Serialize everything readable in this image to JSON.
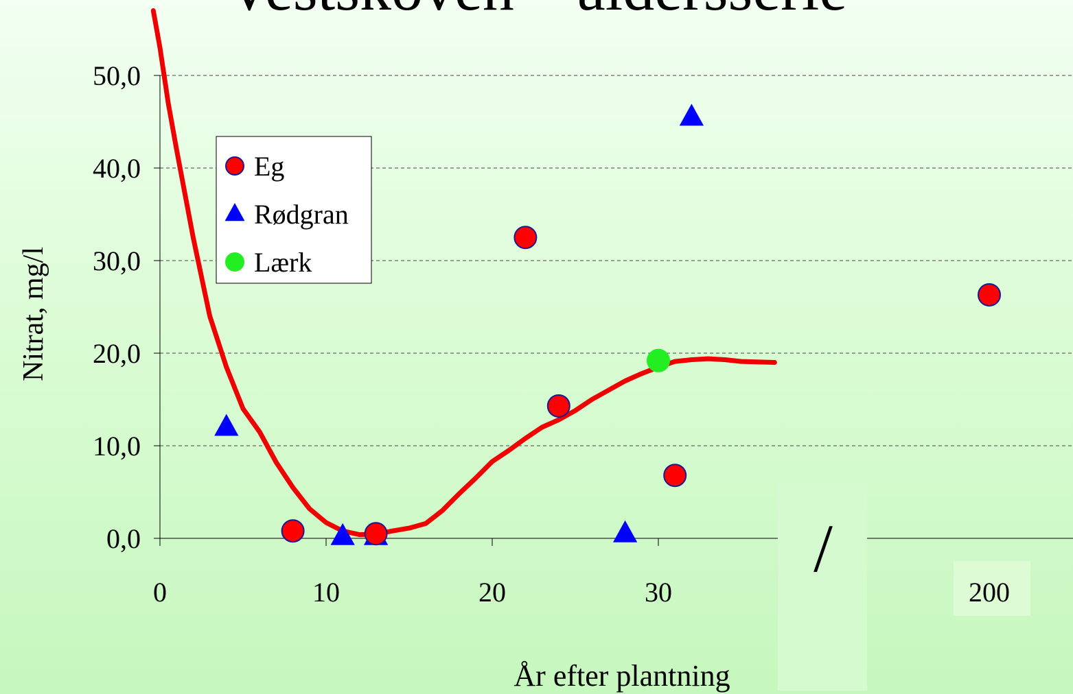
{
  "chart_data": {
    "type": "scatter",
    "title": "Vestskoven – aldersserie",
    "xlabel": "År efter plantning",
    "ylabel": "Nitrat, mg/l",
    "xlim": [
      0,
      38
    ],
    "ylim": [
      0,
      50
    ],
    "x_ticks": [
      "0",
      "10",
      "20",
      "30",
      "200"
    ],
    "y_ticks": [
      "0,0",
      "10,0",
      "20,0",
      "30,0",
      "40,0",
      "50,0"
    ],
    "axis_break": "/",
    "grid": true,
    "legend_position": "upper-left",
    "series": [
      {
        "name": "Eg",
        "marker": "circle",
        "color": "#ff0000",
        "edge_color": "#1a1a8c",
        "points": [
          {
            "x": 8,
            "y": 0.8
          },
          {
            "x": 13,
            "y": 0.5
          },
          {
            "x": 22,
            "y": 32.5
          },
          {
            "x": 24,
            "y": 14.3
          },
          {
            "x": 31,
            "y": 6.8
          },
          {
            "x": "200",
            "y": 26.3
          }
        ]
      },
      {
        "name": "Rødgran",
        "marker": "triangle",
        "color": "#0000ff",
        "points": [
          {
            "x": 4,
            "y": 12
          },
          {
            "x": 11,
            "y": 0.2
          },
          {
            "x": 13,
            "y": 0.2
          },
          {
            "x": 28,
            "y": 0.5
          },
          {
            "x": 32,
            "y": 45.5
          }
        ]
      },
      {
        "name": "Lærk",
        "marker": "circle",
        "color": "#22ee22",
        "points": [
          {
            "x": 30,
            "y": 19.2
          }
        ]
      }
    ],
    "trend_line": {
      "color": "#ee0000",
      "points": [
        {
          "x": -0.4,
          "y": 57
        },
        {
          "x": 0,
          "y": 53
        },
        {
          "x": 0.5,
          "y": 47
        },
        {
          "x": 1,
          "y": 42
        },
        {
          "x": 2,
          "y": 32.5
        },
        {
          "x": 3,
          "y": 24
        },
        {
          "x": 4,
          "y": 18.5
        },
        {
          "x": 5,
          "y": 14
        },
        {
          "x": 6,
          "y": 11.5
        },
        {
          "x": 7,
          "y": 8.2
        },
        {
          "x": 8,
          "y": 5.5
        },
        {
          "x": 9,
          "y": 3.2
        },
        {
          "x": 10,
          "y": 1.7
        },
        {
          "x": 11,
          "y": 0.8
        },
        {
          "x": 12,
          "y": 0.4
        },
        {
          "x": 13,
          "y": 0.45
        },
        {
          "x": 14,
          "y": 0.8
        },
        {
          "x": 15,
          "y": 1.1
        },
        {
          "x": 16,
          "y": 1.6
        },
        {
          "x": 17,
          "y": 3
        },
        {
          "x": 18,
          "y": 4.8
        },
        {
          "x": 19,
          "y": 6.5
        },
        {
          "x": 20,
          "y": 8.3
        },
        {
          "x": 21,
          "y": 9.5
        },
        {
          "x": 22,
          "y": 10.8
        },
        {
          "x": 23,
          "y": 12
        },
        {
          "x": 24,
          "y": 12.8
        },
        {
          "x": 25,
          "y": 13.8
        },
        {
          "x": 26,
          "y": 15
        },
        {
          "x": 27,
          "y": 16
        },
        {
          "x": 28,
          "y": 17
        },
        {
          "x": 29,
          "y": 17.8
        },
        {
          "x": 30,
          "y": 18.5
        },
        {
          "x": 31,
          "y": 19.1
        },
        {
          "x": 32,
          "y": 19.3
        },
        {
          "x": 33,
          "y": 19.4
        },
        {
          "x": 34,
          "y": 19.3
        },
        {
          "x": 35,
          "y": 19.1
        },
        {
          "x": 37,
          "y": 19
        }
      ]
    }
  }
}
